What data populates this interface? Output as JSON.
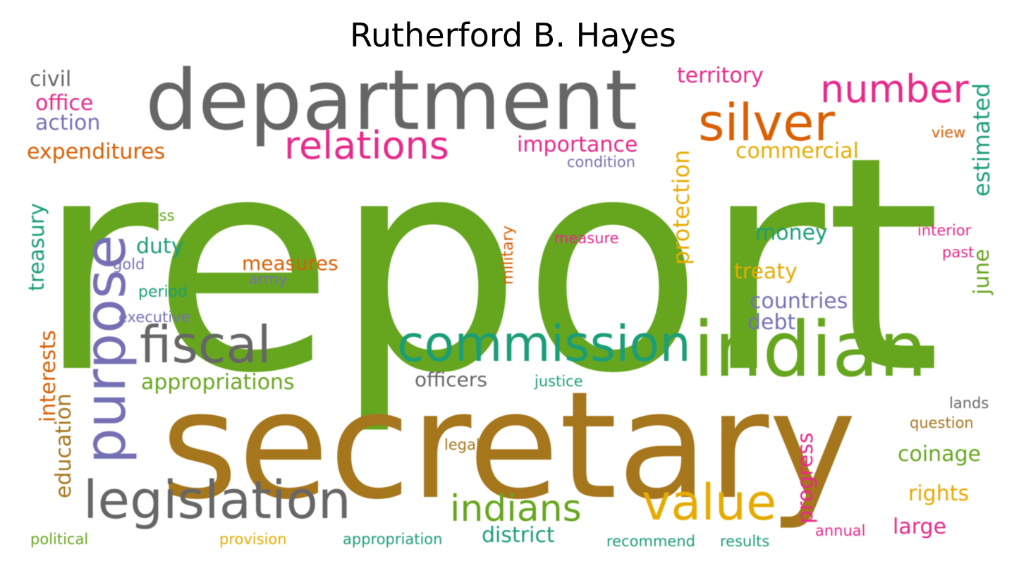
{
  "title": "Rutherford B. Hayes",
  "palette": {
    "green": "#66a61e",
    "gold": "#a6761d",
    "gray": "#666666",
    "orange": "#d95f02",
    "pink": "#e7298a",
    "teal": "#1b9e77",
    "purple": "#7570b3",
    "yellow": "#e6ab02"
  },
  "words": [
    {
      "text": "report",
      "color": "green"
    },
    {
      "text": "secretary",
      "color": "gold"
    },
    {
      "text": "department",
      "color": "gray"
    },
    {
      "text": "indian",
      "color": "green"
    },
    {
      "text": "silver",
      "color": "orange"
    },
    {
      "text": "purpose",
      "color": "purple"
    },
    {
      "text": "commission",
      "color": "teal"
    },
    {
      "text": "legislation",
      "color": "gray"
    },
    {
      "text": "fiscal",
      "color": "gray"
    },
    {
      "text": "value",
      "color": "yellow"
    },
    {
      "text": "relations",
      "color": "pink"
    },
    {
      "text": "number",
      "color": "pink"
    },
    {
      "text": "indians",
      "color": "green"
    },
    {
      "text": "protection",
      "color": "yellow"
    },
    {
      "text": "estimated",
      "color": "teal"
    },
    {
      "text": "appropriations",
      "color": "green"
    },
    {
      "text": "commercial",
      "color": "yellow"
    },
    {
      "text": "importance",
      "color": "pink"
    },
    {
      "text": "expenditures",
      "color": "orange"
    },
    {
      "text": "territory",
      "color": "pink"
    },
    {
      "text": "treasury",
      "color": "teal"
    },
    {
      "text": "interests",
      "color": "orange"
    },
    {
      "text": "education",
      "color": "gold"
    },
    {
      "text": "progress",
      "color": "pink"
    },
    {
      "text": "countries",
      "color": "purple"
    },
    {
      "text": "money",
      "color": "teal"
    },
    {
      "text": "treaty",
      "color": "yellow"
    },
    {
      "text": "measures",
      "color": "orange"
    },
    {
      "text": "district",
      "color": "teal"
    },
    {
      "text": "officers",
      "color": "gray"
    },
    {
      "text": "coinage",
      "color": "green"
    },
    {
      "text": "rights",
      "color": "yellow"
    },
    {
      "text": "large",
      "color": "pink"
    },
    {
      "text": "june",
      "color": "green"
    },
    {
      "text": "office",
      "color": "pink"
    },
    {
      "text": "action",
      "color": "purple"
    },
    {
      "text": "civil",
      "color": "gray"
    },
    {
      "text": "duty",
      "color": "teal"
    },
    {
      "text": "debt",
      "color": "purple"
    },
    {
      "text": "military",
      "color": "orange"
    },
    {
      "text": "business",
      "color": "green"
    },
    {
      "text": "period",
      "color": "teal"
    },
    {
      "text": "executive",
      "color": "purple"
    },
    {
      "text": "gold",
      "color": "purple"
    },
    {
      "text": "army",
      "color": "purple"
    },
    {
      "text": "measure",
      "color": "pink"
    },
    {
      "text": "condition",
      "color": "purple"
    },
    {
      "text": "justice",
      "color": "teal"
    },
    {
      "text": "interior",
      "color": "pink"
    },
    {
      "text": "past",
      "color": "pink"
    },
    {
      "text": "view",
      "color": "orange"
    },
    {
      "text": "lands",
      "color": "gray"
    },
    {
      "text": "question",
      "color": "gold"
    },
    {
      "text": "legal",
      "color": "gold"
    },
    {
      "text": "political",
      "color": "green"
    },
    {
      "text": "provision",
      "color": "yellow"
    },
    {
      "text": "appropriation",
      "color": "teal"
    },
    {
      "text": "recommend",
      "color": "teal"
    },
    {
      "text": "results",
      "color": "teal"
    },
    {
      "text": "annual",
      "color": "pink"
    }
  ]
}
